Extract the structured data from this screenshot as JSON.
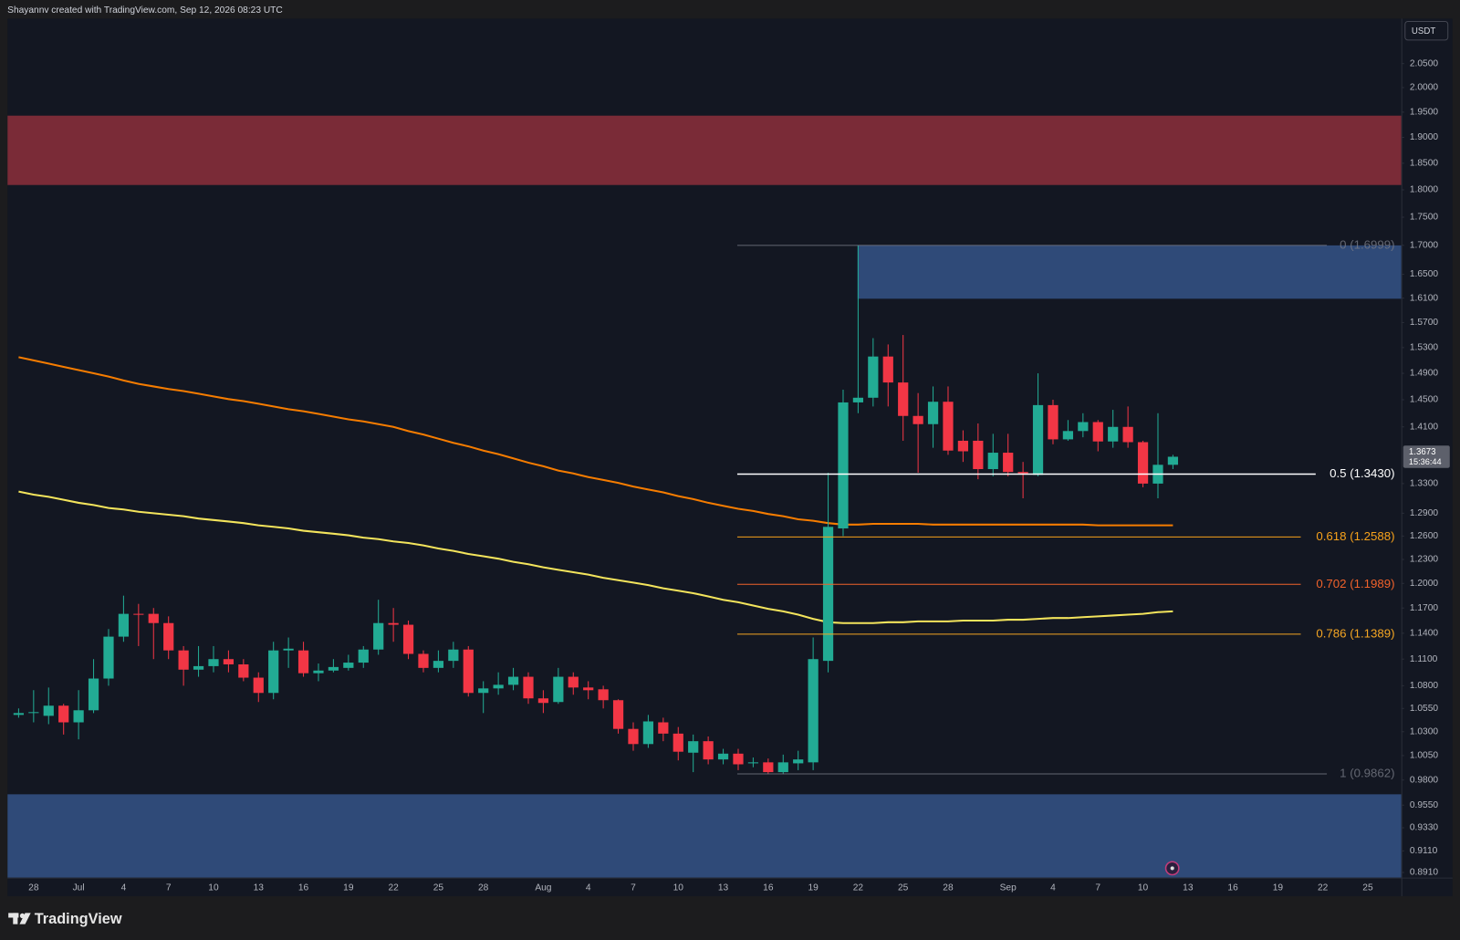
{
  "page": {
    "header": "Shayannv created with TradingView.com, Sep 12, 2026 08:23 UTC",
    "brand": "TradingView"
  },
  "chart_data": {
    "type": "candlestick",
    "currency": "USDT",
    "log_scale": true,
    "grid": false,
    "up_color": "#22ab94",
    "down_color": "#f23645",
    "categories": [
      null,
      "28",
      null,
      null,
      "Jul",
      null,
      null,
      "4",
      null,
      null,
      "7",
      null,
      null,
      "10",
      null,
      null,
      "13",
      null,
      null,
      "16",
      null,
      null,
      "19",
      null,
      null,
      "22",
      null,
      null,
      "25",
      null,
      null,
      "28",
      null,
      null,
      null,
      "Aug",
      null,
      null,
      "4",
      null,
      null,
      "7",
      null,
      null,
      "10",
      null,
      null,
      "13",
      null,
      null,
      "16",
      null,
      null,
      "19",
      null,
      null,
      "22",
      null,
      null,
      "25",
      null,
      null,
      "28",
      null,
      null,
      null,
      "Sep",
      null,
      null,
      "4",
      null,
      null,
      "7",
      null,
      null,
      "10",
      null,
      null,
      "13",
      null,
      null,
      "16",
      null,
      null,
      "19",
      null,
      null,
      "22",
      null,
      null,
      "25",
      null,
      null
    ],
    "open": [
      1.048,
      1.05,
      1.047,
      1.058,
      1.04,
      1.053,
      1.088,
      1.136,
      1.163,
      1.163,
      1.152,
      1.12,
      1.098,
      1.102,
      1.11,
      1.104,
      1.089,
      1.072,
      1.12,
      1.12,
      1.094,
      1.097,
      1.1,
      1.106,
      1.121,
      1.152,
      1.15,
      1.116,
      1.1,
      1.108,
      1.121,
      1.072,
      1.077,
      1.081,
      1.09,
      1.066,
      1.062,
      1.09,
      1.078,
      1.076,
      1.064,
      1.033,
      1.017,
      1.04,
      1.028,
      1.008,
      1.02,
      1.001,
      1.007,
      0.997,
      0.998,
      0.988,
      0.997,
      0.998,
      1.108,
      1.27,
      1.446,
      1.453,
      1.516,
      1.476,
      1.426,
      1.414,
      1.447,
      1.39,
      1.39,
      1.35,
      1.373,
      1.346,
      1.342,
      1.442,
      1.392,
      1.404,
      1.417,
      1.389,
      1.41,
      1.388,
      1.33,
      1.356,
      null,
      null,
      null,
      null,
      null,
      null,
      null,
      null,
      null,
      null,
      null,
      null,
      null,
      null,
      null
    ],
    "high": [
      1.055,
      1.075,
      1.078,
      1.06,
      1.075,
      1.11,
      1.145,
      1.185,
      1.175,
      1.17,
      1.16,
      1.125,
      1.125,
      1.125,
      1.12,
      1.11,
      1.095,
      1.13,
      1.135,
      1.13,
      1.105,
      1.11,
      1.115,
      1.125,
      1.18,
      1.17,
      1.155,
      1.12,
      1.12,
      1.13,
      1.125,
      1.085,
      1.095,
      1.1,
      1.095,
      1.075,
      1.1,
      1.095,
      1.085,
      1.08,
      1.065,
      1.04,
      1.048,
      1.045,
      1.035,
      1.027,
      1.025,
      1.012,
      1.012,
      1.003,
      1.002,
      1.006,
      1.01,
      1.135,
      1.345,
      1.465,
      1.7,
      1.545,
      1.535,
      1.55,
      1.46,
      1.47,
      1.47,
      1.405,
      1.415,
      1.4,
      1.4,
      1.36,
      1.49,
      1.45,
      1.42,
      1.43,
      1.42,
      1.435,
      1.44,
      1.39,
      1.43,
      1.37,
      null,
      null,
      null,
      null,
      null,
      null,
      null,
      null,
      null,
      null,
      null,
      null,
      null,
      null,
      null
    ],
    "low": [
      1.045,
      1.04,
      1.038,
      1.027,
      1.022,
      1.05,
      1.08,
      1.13,
      1.125,
      1.11,
      1.11,
      1.08,
      1.09,
      1.095,
      1.095,
      1.085,
      1.062,
      1.065,
      1.1,
      1.09,
      1.085,
      1.095,
      1.097,
      1.1,
      1.115,
      1.13,
      1.11,
      1.095,
      1.095,
      1.1,
      1.068,
      1.05,
      1.07,
      1.075,
      1.06,
      1.05,
      1.06,
      1.07,
      1.065,
      1.055,
      1.028,
      1.01,
      1.013,
      1.02,
      1.0,
      0.988,
      0.996,
      0.996,
      0.99,
      0.993,
      0.986,
      0.986,
      0.99,
      0.99,
      1.095,
      1.26,
      1.43,
      1.44,
      1.44,
      1.39,
      1.345,
      1.38,
      1.37,
      1.36,
      1.336,
      1.34,
      1.34,
      1.31,
      1.34,
      1.385,
      1.39,
      1.395,
      1.375,
      1.38,
      1.38,
      1.325,
      1.31,
      1.35,
      null,
      null,
      null,
      null,
      null,
      null,
      null,
      null,
      null,
      null,
      null,
      null,
      null,
      null,
      null
    ],
    "close": [
      1.05,
      1.051,
      1.058,
      1.04,
      1.053,
      1.088,
      1.136,
      1.163,
      1.162,
      1.152,
      1.12,
      1.098,
      1.102,
      1.11,
      1.104,
      1.089,
      1.072,
      1.12,
      1.122,
      1.094,
      1.097,
      1.101,
      1.106,
      1.121,
      1.152,
      1.15,
      1.116,
      1.1,
      1.108,
      1.121,
      1.072,
      1.077,
      1.081,
      1.09,
      1.066,
      1.061,
      1.09,
      1.078,
      1.075,
      1.064,
      1.033,
      1.017,
      1.041,
      1.028,
      1.009,
      1.02,
      1.001,
      1.007,
      0.996,
      0.998,
      0.988,
      0.998,
      1.001,
      1.11,
      1.272,
      1.446,
      1.453,
      1.516,
      1.476,
      1.426,
      1.414,
      1.447,
      1.376,
      1.375,
      1.35,
      1.373,
      1.346,
      1.344,
      1.442,
      1.392,
      1.404,
      1.417,
      1.389,
      1.41,
      1.388,
      1.33,
      1.356,
      1.3673,
      null,
      null,
      null,
      null,
      null,
      null,
      null,
      null,
      null,
      null,
      null,
      null,
      null,
      null,
      null
    ],
    "series": [
      {
        "color": "#f57c00",
        "values": [
          1.515,
          1.51,
          1.505,
          1.5,
          1.495,
          1.49,
          1.485,
          1.479,
          1.474,
          1.47,
          1.466,
          1.463,
          1.459,
          1.455,
          1.451,
          1.448,
          1.444,
          1.44,
          1.436,
          1.433,
          1.429,
          1.425,
          1.421,
          1.418,
          1.414,
          1.41,
          1.404,
          1.399,
          1.393,
          1.387,
          1.382,
          1.376,
          1.371,
          1.365,
          1.359,
          1.354,
          1.348,
          1.344,
          1.339,
          1.335,
          1.331,
          1.326,
          1.322,
          1.318,
          1.313,
          1.309,
          1.304,
          1.3,
          1.296,
          1.293,
          1.289,
          1.286,
          1.282,
          1.28,
          1.277,
          1.275,
          1.275,
          1.276,
          1.276,
          1.276,
          1.276,
          1.275,
          1.275,
          1.275,
          1.275,
          1.275,
          1.275,
          1.275,
          1.275,
          1.275,
          1.275,
          1.275,
          1.274,
          1.274,
          1.274,
          1.274,
          1.274,
          1.274,
          null,
          null,
          null,
          null,
          null,
          null,
          null,
          null,
          null,
          null,
          null,
          null,
          null,
          null,
          null
        ]
      },
      {
        "color": "#f3e45c",
        "values": [
          1.319,
          1.315,
          1.312,
          1.308,
          1.304,
          1.301,
          1.297,
          1.295,
          1.292,
          1.29,
          1.288,
          1.286,
          1.283,
          1.281,
          1.279,
          1.277,
          1.274,
          1.272,
          1.27,
          1.267,
          1.265,
          1.263,
          1.261,
          1.258,
          1.256,
          1.253,
          1.251,
          1.248,
          1.244,
          1.241,
          1.237,
          1.234,
          1.231,
          1.227,
          1.224,
          1.22,
          1.217,
          1.214,
          1.211,
          1.207,
          1.204,
          1.201,
          1.198,
          1.194,
          1.191,
          1.188,
          1.184,
          1.18,
          1.177,
          1.173,
          1.169,
          1.166,
          1.162,
          1.157,
          1.153,
          1.152,
          1.152,
          1.152,
          1.153,
          1.153,
          1.154,
          1.154,
          1.154,
          1.155,
          1.155,
          1.155,
          1.156,
          1.156,
          1.157,
          1.158,
          1.158,
          1.159,
          1.16,
          1.161,
          1.162,
          1.163,
          1.165,
          1.166,
          null,
          null,
          null,
          null,
          null,
          null,
          null,
          null,
          null,
          null,
          null,
          null,
          null,
          null,
          null
        ]
      }
    ],
    "fib_levels": [
      {
        "label": "0 (1.6999)",
        "value": 1.6999,
        "color": "#787b86"
      },
      {
        "label": "0.5 (1.3430)",
        "value": 1.343,
        "color": "#ffffff"
      },
      {
        "label": "0.618 (1.2588)",
        "value": 1.2588,
        "color": "#f7a21b"
      },
      {
        "label": "0.702 (1.1989)",
        "value": 1.1989,
        "color": "#f0622b"
      },
      {
        "label": "0.786 (1.1389)",
        "value": 1.1389,
        "color": "#f5a623"
      },
      {
        "label": "1 (0.9862)",
        "value": 0.9862,
        "color": "#787b86"
      }
    ],
    "zones": [
      {
        "top": 1.943,
        "bottom": 1.809,
        "color": "#7a2b37"
      },
      {
        "top": 1.6999,
        "bottom": 1.609,
        "color": "#2f4a78"
      },
      {
        "top": 0.9657,
        "bottom": 0.8863,
        "color": "#2f4a78"
      }
    ],
    "last_price": 1.3673,
    "countdown": "15:36:44",
    "ylim": [
      0.8863,
      2.1472
    ],
    "yticks": [
      {
        "value": 2.05,
        "label": "2.0500"
      },
      {
        "value": 2.0,
        "label": "2.0000"
      },
      {
        "value": 1.95,
        "label": "1.9500"
      },
      {
        "value": 1.9,
        "label": "1.9000"
      },
      {
        "value": 1.85,
        "label": "1.8500"
      },
      {
        "value": 1.8,
        "label": "1.8000"
      },
      {
        "value": 1.75,
        "label": "1.7500"
      },
      {
        "value": 1.7,
        "label": "1.7000"
      },
      {
        "value": 1.65,
        "label": "1.6500"
      },
      {
        "value": 1.61,
        "label": "1.6100"
      },
      {
        "value": 1.57,
        "label": "1.5700"
      },
      {
        "value": 1.53,
        "label": "1.5300"
      },
      {
        "value": 1.49,
        "label": "1.4900"
      },
      {
        "value": 1.45,
        "label": "1.4500"
      },
      {
        "value": 1.41,
        "label": "1.4100"
      },
      {
        "value": 1.33,
        "label": "1.3300"
      },
      {
        "value": 1.29,
        "label": "1.2900"
      },
      {
        "value": 1.26,
        "label": "1.2600"
      },
      {
        "value": 1.23,
        "label": "1.2300"
      },
      {
        "value": 1.2,
        "label": "1.2000"
      },
      {
        "value": 1.17,
        "label": "1.1700"
      },
      {
        "value": 1.14,
        "label": "1.1400"
      },
      {
        "value": 1.11,
        "label": "1.1100"
      },
      {
        "value": 1.08,
        "label": "1.0800"
      },
      {
        "value": 1.055,
        "label": "1.0550"
      },
      {
        "value": 1.03,
        "label": "1.0300"
      },
      {
        "value": 1.005,
        "label": "1.0050"
      },
      {
        "value": 0.98,
        "label": "0.9800"
      },
      {
        "value": 0.955,
        "label": "0.9550"
      },
      {
        "value": 0.933,
        "label": "0.9330"
      },
      {
        "value": 0.911,
        "label": "0.9110"
      },
      {
        "value": 0.891,
        "label": "0.8910"
      }
    ]
  }
}
